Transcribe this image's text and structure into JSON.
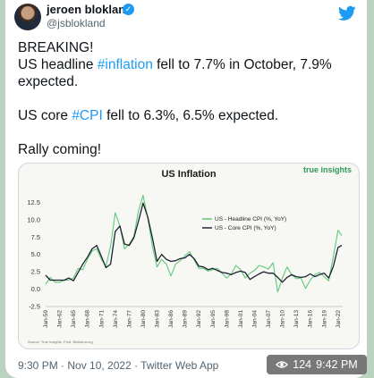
{
  "tweet": {
    "author_name": "jeroen blokland",
    "author_handle": "@jsblokland",
    "line1": "BREAKING!",
    "line2_pre": "US headline ",
    "line2_tag": "#inflation",
    "line2_post": " fell to 7.7% in October, 7.9%",
    "line3": "expected.",
    "line4_pre": "US core ",
    "line4_tag": "#CPI",
    "line4_post": " fell to 6.3%, 6.5% expected.",
    "line5": "Rally coming!",
    "timestamp": "9:30 PM · Nov 10, 2022 · Twitter Web App"
  },
  "overlay": {
    "views": "124",
    "time": "9:42 PM"
  },
  "colors": {
    "headline": "#5fc97a",
    "core": "#1c2230",
    "hashtag": "#1d9bf0",
    "brand": "#2e9a55"
  },
  "icons": [
    "verified-icon",
    "twitter-icon",
    "eye-icon"
  ],
  "chart_data": {
    "type": "line",
    "title": "US Inflation",
    "brand": "true insights",
    "source": "Source: True Insights, Fred, Blokland.org",
    "ylim": [
      -2.5,
      15
    ],
    "yticks": [
      "12.5",
      "10.0",
      "7.5",
      "5.0",
      "2.5",
      "0.0",
      "-2.5"
    ],
    "xticks": [
      "Jan-59",
      "Jan-62",
      "Jan-65",
      "Jan-68",
      "Jan-71",
      "Jan-74",
      "Jan-77",
      "Jan-80",
      "Jan-83",
      "Jan-86",
      "Jan-89",
      "Jan-92",
      "Jan-95",
      "Jan-98",
      "Jan-01",
      "Jan-04",
      "Jan-07",
      "Jan-10",
      "Jan-13",
      "Jan-16",
      "Jan-19",
      "Jan-22"
    ],
    "legend": "top-right",
    "series": [
      {
        "name": "US - Headline CPI (%, YoY)",
        "x": [
          1959,
          1960,
          1961,
          1962,
          1963,
          1964,
          1965,
          1966,
          1967,
          1968,
          1969,
          1970,
          1971,
          1972,
          1973,
          1974,
          1975,
          1976,
          1977,
          1978,
          1979,
          1980,
          1981,
          1982,
          1983,
          1984,
          1985,
          1986,
          1987,
          1988,
          1989,
          1990,
          1991,
          1992,
          1993,
          1994,
          1995,
          1996,
          1997,
          1998,
          1999,
          2000,
          2001,
          2002,
          2003,
          2004,
          2005,
          2006,
          2007,
          2008,
          2009,
          2010,
          2011,
          2012,
          2013,
          2014,
          2015,
          2016,
          2017,
          2018,
          2019,
          2020,
          2021,
          2022,
          2022.8
        ],
        "y": [
          0.7,
          1.7,
          1.0,
          1.0,
          1.3,
          1.3,
          1.6,
          3.0,
          2.8,
          4.3,
          5.5,
          5.8,
          4.3,
          3.3,
          6.2,
          11.0,
          9.1,
          5.8,
          6.5,
          7.6,
          11.3,
          13.5,
          10.3,
          6.2,
          3.2,
          4.3,
          3.6,
          1.9,
          3.6,
          4.1,
          4.8,
          5.4,
          4.2,
          3.0,
          3.0,
          2.6,
          2.8,
          3.0,
          2.3,
          1.6,
          2.2,
          3.4,
          2.8,
          1.6,
          2.3,
          2.7,
          3.4,
          3.2,
          2.9,
          3.8,
          -0.4,
          1.6,
          3.2,
          2.1,
          1.5,
          1.6,
          0.1,
          1.3,
          2.1,
          2.4,
          1.8,
          1.2,
          4.7,
          8.5,
          7.7
        ]
      },
      {
        "name": "US - Core CPI (%, YoY)",
        "x": [
          1959,
          1960,
          1961,
          1962,
          1963,
          1964,
          1965,
          1966,
          1967,
          1968,
          1969,
          1970,
          1971,
          1972,
          1973,
          1974,
          1975,
          1976,
          1977,
          1978,
          1979,
          1980,
          1981,
          1982,
          1983,
          1984,
          1985,
          1986,
          1987,
          1988,
          1989,
          1990,
          1991,
          1992,
          1993,
          1994,
          1995,
          1996,
          1997,
          1998,
          1999,
          2000,
          2001,
          2002,
          2003,
          2004,
          2005,
          2006,
          2007,
          2008,
          2009,
          2010,
          2011,
          2012,
          2013,
          2014,
          2015,
          2016,
          2017,
          2018,
          2019,
          2020,
          2021,
          2022,
          2022.8
        ],
        "y": [
          2.0,
          1.3,
          1.3,
          1.3,
          1.3,
          1.6,
          1.2,
          2.4,
          3.6,
          4.6,
          5.8,
          6.3,
          4.7,
          3.1,
          3.6,
          8.3,
          9.1,
          6.5,
          6.3,
          7.4,
          9.8,
          12.4,
          10.4,
          7.4,
          4.0,
          5.0,
          4.3,
          4.0,
          4.1,
          4.4,
          4.5,
          5.0,
          4.4,
          3.3,
          3.2,
          2.8,
          3.0,
          2.7,
          2.4,
          2.3,
          2.1,
          2.4,
          2.6,
          2.4,
          1.4,
          1.8,
          2.2,
          2.5,
          2.3,
          2.3,
          1.7,
          1.0,
          1.7,
          2.1,
          1.8,
          1.7,
          1.8,
          2.2,
          1.8,
          2.1,
          2.3,
          1.6,
          3.3,
          6.0,
          6.3
        ]
      }
    ]
  }
}
